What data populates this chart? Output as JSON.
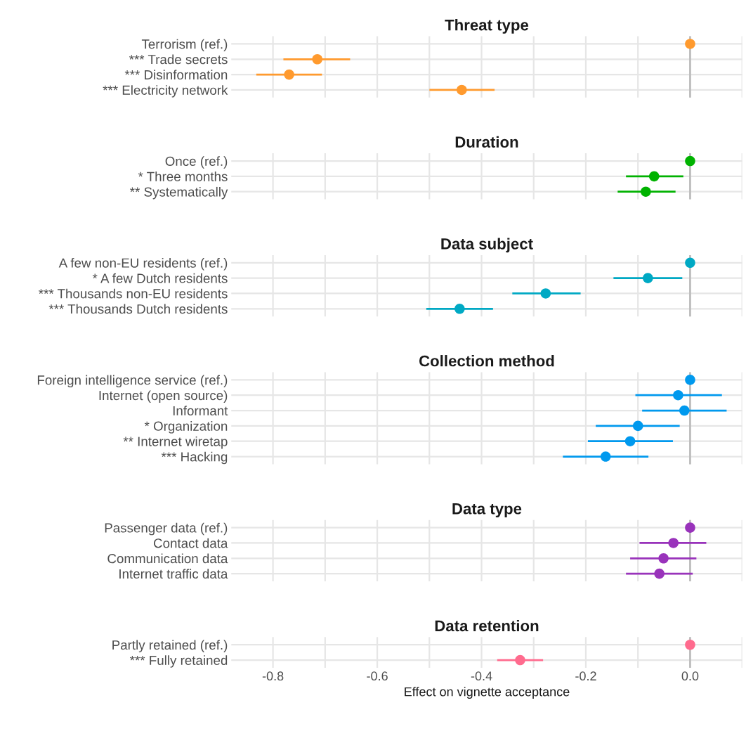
{
  "chart_data": [
    {
      "type": "scatter",
      "orientation": "horizontal",
      "title": "Threat type",
      "categories": [
        "Terrorism (ref.)",
        "*** Trade secrets",
        "*** Disinformation",
        "*** Electricity network"
      ],
      "values": [
        0,
        -0.715,
        -0.769,
        -0.438
      ],
      "errors": [
        null,
        [
          -0.78,
          -0.652
        ],
        [
          -0.832,
          -0.706
        ],
        [
          -0.5,
          -0.375
        ]
      ],
      "color": "#ff9a2e",
      "marker": "circle",
      "xlim": [
        -0.88,
        0.1
      ],
      "xticks": [
        -0.8,
        -0.7,
        -0.6,
        -0.5,
        -0.4,
        -0.3,
        -0.2,
        -0.1,
        0,
        0.1
      ],
      "grid": true,
      "tick_labels": "y",
      "ref_lines": [
        {
          "axis": "x",
          "value": 0,
          "color": "#bdbdbd"
        }
      ]
    },
    {
      "type": "scatter",
      "orientation": "horizontal",
      "title": "Duration",
      "categories": [
        "Once (ref.)",
        "* Three months",
        "** Systematically"
      ],
      "values": [
        0,
        -0.069,
        -0.085
      ],
      "errors": [
        null,
        [
          -0.123,
          -0.013
        ],
        [
          -0.139,
          -0.028
        ]
      ],
      "color": "#00b200",
      "marker": "circle",
      "xlim": [
        -0.88,
        0.1
      ],
      "xticks": [
        -0.8,
        -0.7,
        -0.6,
        -0.5,
        -0.4,
        -0.3,
        -0.2,
        -0.1,
        0,
        0.1
      ],
      "grid": true,
      "tick_labels": "y",
      "ref_lines": [
        {
          "axis": "x",
          "value": 0,
          "color": "#bdbdbd"
        }
      ]
    },
    {
      "type": "scatter",
      "orientation": "horizontal",
      "title": "Data subject",
      "categories": [
        "A few non-EU residents (ref.)",
        "* A few Dutch residents",
        "*** Thousands non-EU residents",
        "*** Thousands Dutch residents"
      ],
      "values": [
        0,
        -0.081,
        -0.277,
        -0.442
      ],
      "errors": [
        null,
        [
          -0.147,
          -0.015
        ],
        [
          -0.341,
          -0.21
        ],
        [
          -0.506,
          -0.378
        ]
      ],
      "color": "#00a9c4",
      "marker": "circle",
      "xlim": [
        -0.88,
        0.1
      ],
      "xticks": [
        -0.8,
        -0.7,
        -0.6,
        -0.5,
        -0.4,
        -0.3,
        -0.2,
        -0.1,
        0,
        0.1
      ],
      "grid": true,
      "tick_labels": "y",
      "ref_lines": [
        {
          "axis": "x",
          "value": 0,
          "color": "#bdbdbd"
        }
      ]
    },
    {
      "type": "scatter",
      "orientation": "horizontal",
      "title": "Collection method",
      "categories": [
        "Foreign intelligence service (ref.)",
        "Internet (open source)",
        "Informant",
        "* Organization",
        "** Internet wiretap",
        "*** Hacking"
      ],
      "values": [
        0,
        -0.023,
        -0.011,
        -0.1,
        -0.115,
        -0.162
      ],
      "errors": [
        null,
        [
          -0.105,
          0.061
        ],
        [
          -0.092,
          0.07
        ],
        [
          -0.181,
          -0.02
        ],
        [
          -0.196,
          -0.033
        ],
        [
          -0.244,
          -0.08
        ]
      ],
      "color": "#0099ee",
      "marker": "circle",
      "xlim": [
        -0.88,
        0.1
      ],
      "xticks": [
        -0.8,
        -0.7,
        -0.6,
        -0.5,
        -0.4,
        -0.3,
        -0.2,
        -0.1,
        0,
        0.1
      ],
      "grid": true,
      "tick_labels": "y",
      "ref_lines": [
        {
          "axis": "x",
          "value": 0,
          "color": "#bdbdbd"
        }
      ]
    },
    {
      "type": "scatter",
      "orientation": "horizontal",
      "title": "Data type",
      "categories": [
        "Passenger data (ref.)",
        "Contact data",
        "Communication data",
        "Internet traffic data"
      ],
      "values": [
        0,
        -0.032,
        -0.051,
        -0.059
      ],
      "errors": [
        null,
        [
          -0.097,
          0.031
        ],
        [
          -0.115,
          0.012
        ],
        [
          -0.123,
          0.005
        ]
      ],
      "color": "#9933bb",
      "marker": "circle",
      "xlim": [
        -0.88,
        0.1
      ],
      "xticks": [
        -0.8,
        -0.7,
        -0.6,
        -0.5,
        -0.4,
        -0.3,
        -0.2,
        -0.1,
        0,
        0.1
      ],
      "grid": true,
      "tick_labels": "y",
      "ref_lines": [
        {
          "axis": "x",
          "value": 0,
          "color": "#bdbdbd"
        }
      ]
    },
    {
      "type": "scatter",
      "orientation": "horizontal",
      "title": "Data retention",
      "xlabel": "Effect on vignette acceptance",
      "categories": [
        "Partly retained (ref.)",
        "*** Fully retained"
      ],
      "values": [
        0,
        -0.326
      ],
      "errors": [
        null,
        [
          -0.37,
          -0.282
        ]
      ],
      "color": "#ff6b8e",
      "marker": "circle",
      "xlim": [
        -0.88,
        0.1
      ],
      "xticks": [
        {
          "value": -0.8,
          "label": "-0.8"
        },
        {
          "value": -0.7,
          "label": null
        },
        {
          "value": -0.6,
          "label": "-0.6"
        },
        {
          "value": -0.5,
          "label": null
        },
        {
          "value": -0.4,
          "label": "-0.4"
        },
        {
          "value": -0.3,
          "label": null
        },
        {
          "value": -0.2,
          "label": "-0.2"
        },
        {
          "value": -0.1,
          "label": null
        },
        {
          "value": 0,
          "label": "0.0"
        },
        {
          "value": 0.1,
          "label": null
        }
      ],
      "grid": true,
      "ref_lines": [
        {
          "axis": "x",
          "value": 0,
          "color": "#bdbdbd"
        }
      ]
    }
  ]
}
